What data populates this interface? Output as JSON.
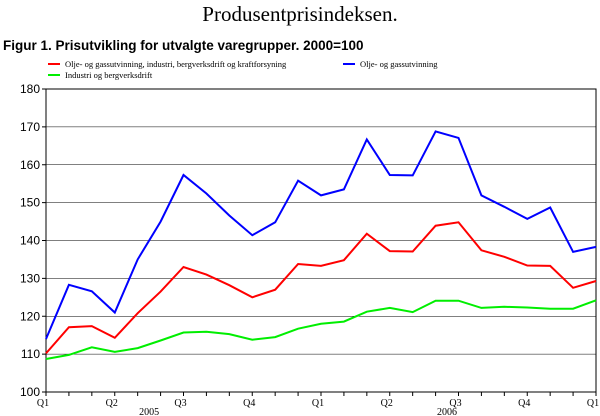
{
  "heading": "Produsentprisindeksen.",
  "figure_title": "Figur 1. Prisutvikling for utvalgte varegrupper. 2000=100",
  "chart_data": {
    "type": "line",
    "title": "Figur 1. Prisutvikling for utvalgte varegrupper. 2000=100",
    "xlabel": "",
    "ylabel": "",
    "ylim": [
      100,
      180
    ],
    "yticks": [
      "100",
      "110",
      "120",
      "130",
      "140",
      "150",
      "160",
      "170",
      "180"
    ],
    "x_tick_labels": [
      "Q1",
      "Q2",
      "Q3",
      "Q4",
      "Q1",
      "Q2",
      "Q3",
      "Q4",
      "Q1"
    ],
    "x_tick_months": [
      0,
      3,
      6,
      9,
      12,
      15,
      18,
      21,
      24
    ],
    "x_year_labels": [
      {
        "label": "2005",
        "month": 4.5
      },
      {
        "label": "2006",
        "month": 17.5
      }
    ],
    "x_months": [
      0,
      1,
      2,
      3,
      4,
      5,
      6,
      7,
      8,
      9,
      10,
      11,
      12,
      13,
      14,
      15,
      16,
      17,
      18,
      19,
      20,
      21,
      22,
      23,
      24
    ],
    "legend_position": "top",
    "grid": "horizontal",
    "series": [
      {
        "name": "Olje- og gassutvinning, industri, bergverksdrift og kraftforsyning",
        "color": "#ff0000",
        "values": [
          110.2,
          117.1,
          117.4,
          114.3,
          120.8,
          126.5,
          133.0,
          131.0,
          128.2,
          125.0,
          127.0,
          133.8,
          133.3,
          134.8,
          141.8,
          137.2,
          137.1,
          143.9,
          144.8,
          137.4,
          135.7,
          133.4,
          133.3,
          127.5,
          129.3
        ]
      },
      {
        "name": "Olje- og gassutvinning",
        "color": "#0000ff",
        "values": [
          114.0,
          128.3,
          126.6,
          121.0,
          135.0,
          145.0,
          157.3,
          152.4,
          146.6,
          141.4,
          144.8,
          155.8,
          151.9,
          153.5,
          166.7,
          157.3,
          157.2,
          168.8,
          167.1,
          151.9,
          148.9,
          145.7,
          148.7,
          137.0,
          138.3
        ]
      },
      {
        "name": "Industri og bergverksdrift",
        "color": "#00ee00",
        "values": [
          108.7,
          109.8,
          111.8,
          110.6,
          111.6,
          113.6,
          115.7,
          115.9,
          115.3,
          113.8,
          114.5,
          116.7,
          118.0,
          118.6,
          121.2,
          122.2,
          121.1,
          124.1,
          124.1,
          122.2,
          122.5,
          122.3,
          122.0,
          122.0,
          124.2
        ]
      }
    ]
  }
}
